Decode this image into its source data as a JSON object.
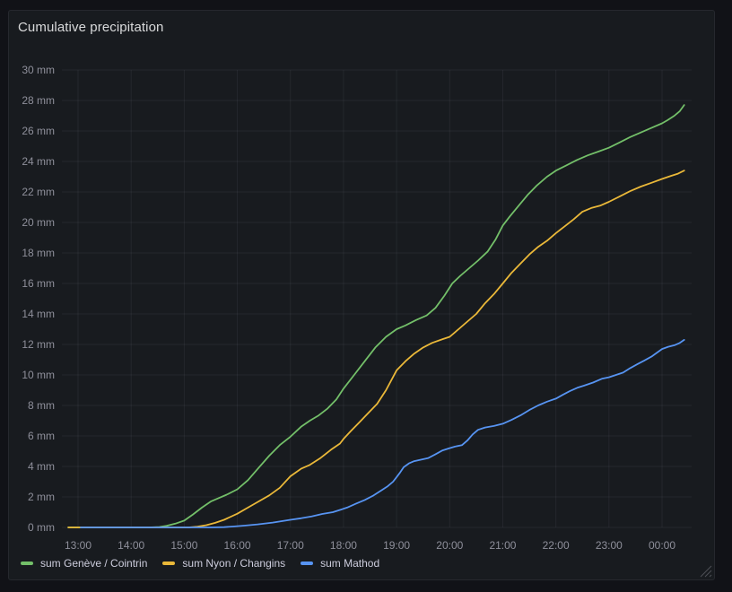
{
  "panel": {
    "title": "Cumulative precipitation"
  },
  "colors": {
    "canvas_background": "#111217",
    "panel_background": "#181b1f",
    "panel_border": "#26282e",
    "grid": "rgba(204,204,220,0.07)",
    "tick_text": "rgba(204,204,220,0.65)",
    "title_text": "#d8d9da",
    "legend_text": "#ccccdc",
    "resize_handle": "rgba(204,204,220,0.30)"
  },
  "chart_data": {
    "type": "line",
    "title": "Cumulative precipitation",
    "xlabel": "",
    "ylabel": "",
    "grid": true,
    "legend_position": "bottom-left",
    "x_axis": {
      "unit": "time (minutes after 12:00)",
      "tick_minutes": [
        60,
        120,
        180,
        240,
        300,
        360,
        420,
        480,
        540,
        600,
        660,
        720
      ],
      "tick_labels": [
        "13:00",
        "14:00",
        "15:00",
        "16:00",
        "17:00",
        "18:00",
        "19:00",
        "20:00",
        "21:00",
        "22:00",
        "23:00",
        "00:00"
      ],
      "range_minutes": [
        42,
        753
      ]
    },
    "y_axis": {
      "unit": "mm",
      "tick_values": [
        0,
        2,
        4,
        6,
        8,
        10,
        12,
        14,
        16,
        18,
        20,
        22,
        24,
        26,
        28,
        30
      ],
      "tick_labels": [
        "0 mm",
        "2 mm",
        "4 mm",
        "6 mm",
        "8 mm",
        "10 mm",
        "12 mm",
        "14 mm",
        "16 mm",
        "18 mm",
        "20 mm",
        "22 mm",
        "24 mm",
        "26 mm",
        "28 mm",
        "30 mm"
      ],
      "range": [
        0,
        30
      ]
    },
    "series": [
      {
        "name": "sum Genève / Cointrin",
        "color": "#73BF69",
        "points": [
          [
            49,
            0
          ],
          [
            80,
            0
          ],
          [
            110,
            0
          ],
          [
            140,
            0
          ],
          [
            152,
            0.03
          ],
          [
            160,
            0.1
          ],
          [
            170,
            0.25
          ],
          [
            180,
            0.45
          ],
          [
            190,
            0.85
          ],
          [
            200,
            1.3
          ],
          [
            210,
            1.7
          ],
          [
            218,
            1.9
          ],
          [
            228,
            2.15
          ],
          [
            240,
            2.5
          ],
          [
            252,
            3.1
          ],
          [
            264,
            3.9
          ],
          [
            276,
            4.7
          ],
          [
            288,
            5.4
          ],
          [
            300,
            5.95
          ],
          [
            312,
            6.6
          ],
          [
            322,
            7.0
          ],
          [
            332,
            7.35
          ],
          [
            342,
            7.8
          ],
          [
            352,
            8.4
          ],
          [
            360,
            9.1
          ],
          [
            372,
            10.0
          ],
          [
            384,
            10.9
          ],
          [
            396,
            11.8
          ],
          [
            408,
            12.5
          ],
          [
            420,
            13.0
          ],
          [
            430,
            13.25
          ],
          [
            442,
            13.6
          ],
          [
            454,
            13.9
          ],
          [
            464,
            14.4
          ],
          [
            474,
            15.2
          ],
          [
            483,
            16.0
          ],
          [
            492,
            16.5
          ],
          [
            502,
            17.0
          ],
          [
            512,
            17.5
          ],
          [
            523,
            18.1
          ],
          [
            532,
            18.9
          ],
          [
            540,
            19.8
          ],
          [
            548,
            20.4
          ],
          [
            558,
            21.1
          ],
          [
            568,
            21.8
          ],
          [
            578,
            22.4
          ],
          [
            590,
            23.0
          ],
          [
            600,
            23.4
          ],
          [
            612,
            23.75
          ],
          [
            624,
            24.1
          ],
          [
            636,
            24.4
          ],
          [
            648,
            24.65
          ],
          [
            660,
            24.9
          ],
          [
            672,
            25.25
          ],
          [
            684,
            25.6
          ],
          [
            696,
            25.9
          ],
          [
            708,
            26.2
          ],
          [
            720,
            26.5
          ],
          [
            726,
            26.7
          ],
          [
            734,
            27.0
          ],
          [
            740,
            27.3
          ],
          [
            745,
            27.7
          ]
        ]
      },
      {
        "name": "sum Nyon / Changins",
        "color": "#EAB839",
        "points": [
          [
            49,
            0
          ],
          [
            80,
            0
          ],
          [
            120,
            0
          ],
          [
            160,
            0
          ],
          [
            185,
            0
          ],
          [
            195,
            0.05
          ],
          [
            205,
            0.15
          ],
          [
            215,
            0.3
          ],
          [
            225,
            0.5
          ],
          [
            240,
            0.9
          ],
          [
            252,
            1.3
          ],
          [
            264,
            1.7
          ],
          [
            276,
            2.1
          ],
          [
            288,
            2.6
          ],
          [
            300,
            3.35
          ],
          [
            312,
            3.85
          ],
          [
            322,
            4.1
          ],
          [
            334,
            4.55
          ],
          [
            346,
            5.1
          ],
          [
            356,
            5.5
          ],
          [
            360,
            5.8
          ],
          [
            368,
            6.3
          ],
          [
            378,
            6.9
          ],
          [
            388,
            7.5
          ],
          [
            398,
            8.1
          ],
          [
            408,
            9.0
          ],
          [
            420,
            10.3
          ],
          [
            430,
            10.9
          ],
          [
            440,
            11.4
          ],
          [
            450,
            11.8
          ],
          [
            460,
            12.1
          ],
          [
            472,
            12.35
          ],
          [
            480,
            12.5
          ],
          [
            490,
            13.0
          ],
          [
            500,
            13.5
          ],
          [
            510,
            14.0
          ],
          [
            520,
            14.7
          ],
          [
            530,
            15.3
          ],
          [
            540,
            16.0
          ],
          [
            550,
            16.7
          ],
          [
            560,
            17.3
          ],
          [
            570,
            17.9
          ],
          [
            580,
            18.4
          ],
          [
            590,
            18.8
          ],
          [
            600,
            19.3
          ],
          [
            610,
            19.75
          ],
          [
            620,
            20.2
          ],
          [
            630,
            20.7
          ],
          [
            640,
            20.95
          ],
          [
            650,
            21.1
          ],
          [
            660,
            21.35
          ],
          [
            672,
            21.7
          ],
          [
            684,
            22.05
          ],
          [
            696,
            22.35
          ],
          [
            708,
            22.6
          ],
          [
            720,
            22.85
          ],
          [
            730,
            23.05
          ],
          [
            738,
            23.2
          ],
          [
            745,
            23.4
          ]
        ]
      },
      {
        "name": "sum Mathod",
        "color": "#5794F2",
        "points": [
          [
            63,
            0
          ],
          [
            100,
            0
          ],
          [
            140,
            0
          ],
          [
            180,
            0
          ],
          [
            210,
            0
          ],
          [
            225,
            0.02
          ],
          [
            235,
            0.06
          ],
          [
            248,
            0.12
          ],
          [
            263,
            0.2
          ],
          [
            280,
            0.32
          ],
          [
            300,
            0.5
          ],
          [
            312,
            0.6
          ],
          [
            324,
            0.72
          ],
          [
            336,
            0.88
          ],
          [
            348,
            1.0
          ],
          [
            356,
            1.15
          ],
          [
            364,
            1.3
          ],
          [
            374,
            1.55
          ],
          [
            384,
            1.8
          ],
          [
            394,
            2.1
          ],
          [
            402,
            2.4
          ],
          [
            410,
            2.7
          ],
          [
            416,
            3.0
          ],
          [
            420,
            3.3
          ],
          [
            424,
            3.6
          ],
          [
            428,
            3.95
          ],
          [
            434,
            4.2
          ],
          [
            440,
            4.35
          ],
          [
            448,
            4.45
          ],
          [
            456,
            4.55
          ],
          [
            464,
            4.8
          ],
          [
            472,
            5.05
          ],
          [
            480,
            5.2
          ],
          [
            486,
            5.3
          ],
          [
            494,
            5.4
          ],
          [
            500,
            5.7
          ],
          [
            506,
            6.1
          ],
          [
            512,
            6.4
          ],
          [
            520,
            6.55
          ],
          [
            530,
            6.65
          ],
          [
            540,
            6.8
          ],
          [
            550,
            7.05
          ],
          [
            560,
            7.35
          ],
          [
            570,
            7.7
          ],
          [
            580,
            8.0
          ],
          [
            590,
            8.25
          ],
          [
            600,
            8.45
          ],
          [
            608,
            8.7
          ],
          [
            616,
            8.95
          ],
          [
            624,
            9.15
          ],
          [
            632,
            9.3
          ],
          [
            642,
            9.5
          ],
          [
            652,
            9.75
          ],
          [
            660,
            9.85
          ],
          [
            668,
            10.0
          ],
          [
            676,
            10.15
          ],
          [
            684,
            10.45
          ],
          [
            692,
            10.7
          ],
          [
            700,
            10.95
          ],
          [
            708,
            11.2
          ],
          [
            714,
            11.45
          ],
          [
            720,
            11.7
          ],
          [
            727,
            11.85
          ],
          [
            734,
            11.95
          ],
          [
            740,
            12.1
          ],
          [
            745,
            12.3
          ]
        ]
      }
    ]
  }
}
